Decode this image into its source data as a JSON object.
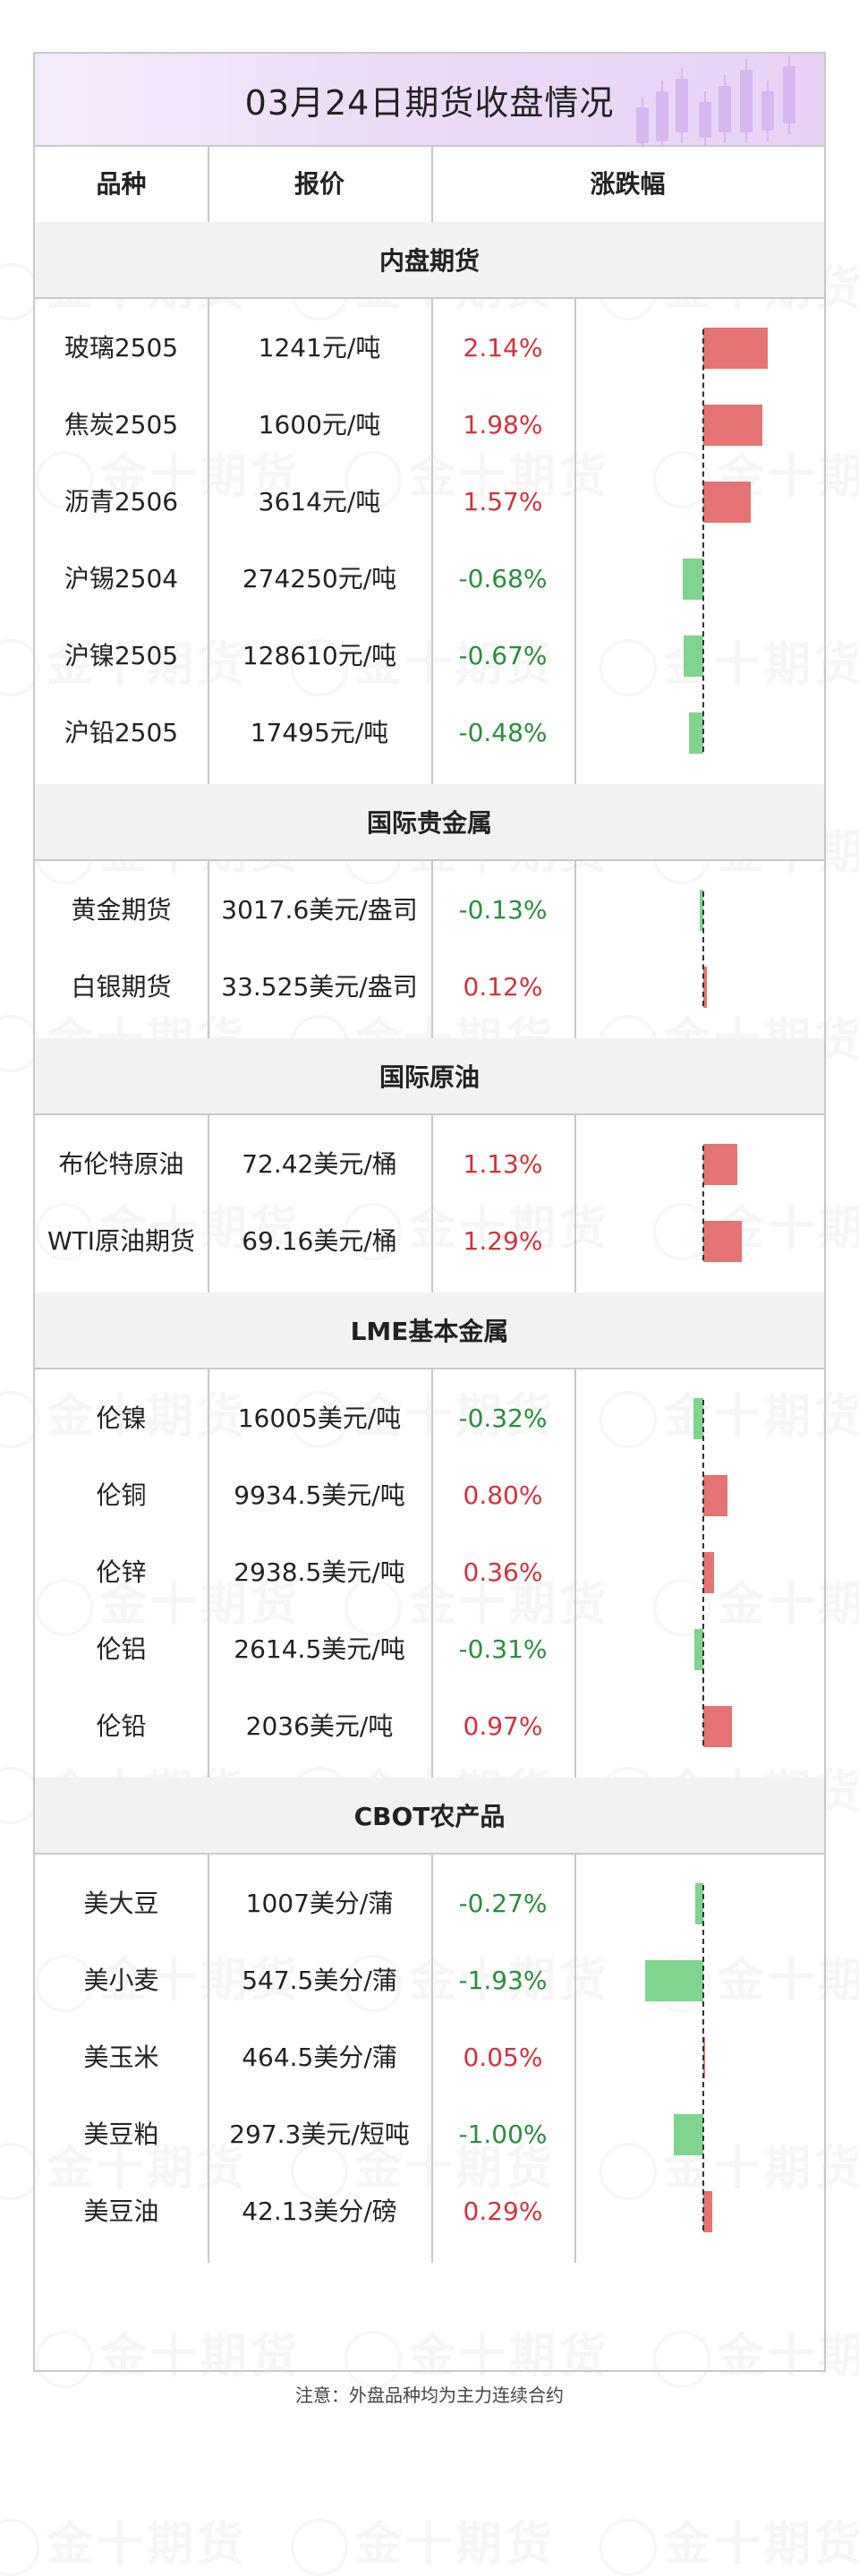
{
  "title": "03月24日期货收盘情况",
  "watermark": "金十期货",
  "headers": {
    "variety": "品种",
    "price": "报价",
    "change": "涨跌幅"
  },
  "colors": {
    "up": "#d0333d",
    "down": "#2e8b3d",
    "bar_up": "#e67373",
    "bar_down": "#7fd48e",
    "title_bg": "#ecdcf7",
    "section_bg": "#f2f2f2"
  },
  "sections": [
    {
      "name": "内盘期货",
      "rows": [
        {
          "name": "玻璃2505",
          "price": "1241元/吨",
          "change": "2.14%",
          "value": 2.14
        },
        {
          "name": "焦炭2505",
          "price": "1600元/吨",
          "change": "1.98%",
          "value": 1.98
        },
        {
          "name": "沥青2506",
          "price": "3614元/吨",
          "change": "1.57%",
          "value": 1.57
        },
        {
          "name": "沪锡2504",
          "price": "274250元/吨",
          "change": "-0.68%",
          "value": -0.68
        },
        {
          "name": "沪镍2505",
          "price": "128610元/吨",
          "change": "-0.67%",
          "value": -0.67
        },
        {
          "name": "沪铅2505",
          "price": "17495元/吨",
          "change": "-0.48%",
          "value": -0.48
        }
      ]
    },
    {
      "name": "国际贵金属",
      "rows": [
        {
          "name": "黄金期货",
          "price": "3017.6美元/盎司",
          "change": "-0.13%",
          "value": -0.13
        },
        {
          "name": "白银期货",
          "price": "33.525美元/盎司",
          "change": "0.12%",
          "value": 0.12
        }
      ]
    },
    {
      "name": "国际原油",
      "rows": [
        {
          "name": "布伦特原油",
          "price": "72.42美元/桶",
          "change": "1.13%",
          "value": 1.13
        },
        {
          "name": "WTI原油期货",
          "price": "69.16美元/桶",
          "change": "1.29%",
          "value": 1.29
        }
      ]
    },
    {
      "name": "LME基本金属",
      "rows": [
        {
          "name": "伦镍",
          "price": "16005美元/吨",
          "change": "-0.32%",
          "value": -0.32
        },
        {
          "name": "伦铜",
          "price": "9934.5美元/吨",
          "change": "0.80%",
          "value": 0.8
        },
        {
          "name": "伦锌",
          "price": "2938.5美元/吨",
          "change": "0.36%",
          "value": 0.36
        },
        {
          "name": "伦铝",
          "price": "2614.5美元/吨",
          "change": "-0.31%",
          "value": -0.31
        },
        {
          "name": "伦铅",
          "price": "2036美元/吨",
          "change": "0.97%",
          "value": 0.97
        }
      ]
    },
    {
      "name": "CBOT农产品",
      "rows": [
        {
          "name": "美大豆",
          "price": "1007美分/蒲",
          "change": "-0.27%",
          "value": -0.27
        },
        {
          "name": "美小麦",
          "price": "547.5美分/蒲",
          "change": "-1.93%",
          "value": -1.93
        },
        {
          "name": "美玉米",
          "price": "464.5美分/蒲",
          "change": "0.05%",
          "value": 0.05
        },
        {
          "name": "美豆粕",
          "price": "297.3美元/短吨",
          "change": "-1.00%",
          "value": -1.0
        },
        {
          "name": "美豆油",
          "price": "42.13美分/磅",
          "change": "0.29%",
          "value": 0.29
        }
      ]
    }
  ],
  "footnote": "注意：外盘品种均为主力连续合约"
}
